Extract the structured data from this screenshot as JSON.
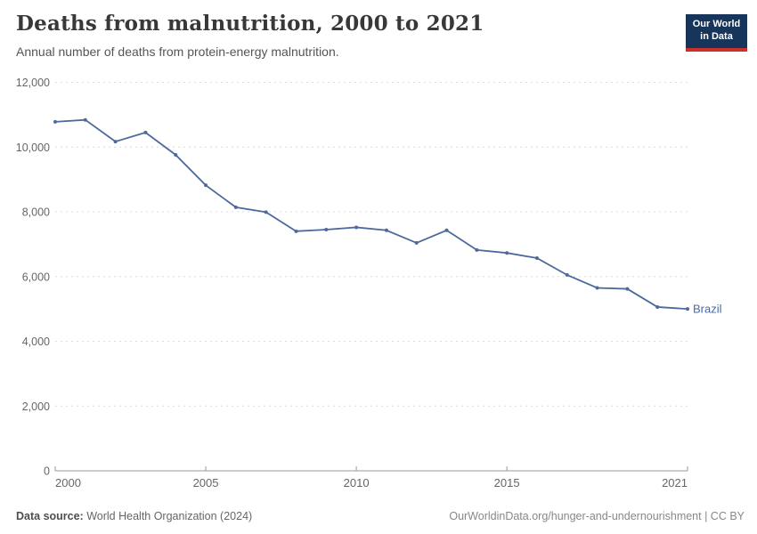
{
  "header": {
    "title": "Deaths from malnutrition, 2000 to 2021",
    "subtitle": "Annual number of deaths from protein-energy malnutrition.",
    "logo": {
      "line1": "Our World",
      "line2": "in Data",
      "bg_color": "#17345a",
      "accent_color": "#c9312b"
    }
  },
  "chart_data": {
    "type": "line",
    "title": "Deaths from malnutrition, 2000 to 2021",
    "xlabel": "",
    "ylabel": "",
    "grid": true,
    "legend_position": "end-of-line-label",
    "xlim": [
      2000,
      2021
    ],
    "ylim": [
      0,
      12000
    ],
    "x": [
      2000,
      2001,
      2002,
      2003,
      2004,
      2005,
      2006,
      2007,
      2008,
      2009,
      2010,
      2011,
      2012,
      2013,
      2014,
      2015,
      2016,
      2017,
      2018,
      2019,
      2020,
      2021
    ],
    "series": [
      {
        "name": "Brazil",
        "color": "#4c6a9c",
        "values": [
          10780,
          10840,
          10170,
          10450,
          9760,
          8820,
          8140,
          7990,
          7400,
          7450,
          7520,
          7430,
          7040,
          7430,
          6820,
          6730,
          6570,
          6050,
          5650,
          5620,
          5060,
          5000
        ]
      }
    ],
    "y_ticks": [
      {
        "value": 0,
        "label": "0"
      },
      {
        "value": 2000,
        "label": "2,000"
      },
      {
        "value": 4000,
        "label": "4,000"
      },
      {
        "value": 6000,
        "label": "6,000"
      },
      {
        "value": 8000,
        "label": "8,000"
      },
      {
        "value": 10000,
        "label": "10,000"
      },
      {
        "value": 12000,
        "label": "12,000"
      }
    ],
    "x_ticks": [
      {
        "value": 2000,
        "label": "2000"
      },
      {
        "value": 2005,
        "label": "2005"
      },
      {
        "value": 2010,
        "label": "2010"
      },
      {
        "value": 2015,
        "label": "2015"
      },
      {
        "value": 2021,
        "label": "2021"
      }
    ]
  },
  "footer": {
    "source_label": "Data source:",
    "source_value": "World Health Organization (2024)",
    "link": "OurWorldinData.org/hunger-and-undernourishment | CC BY"
  }
}
